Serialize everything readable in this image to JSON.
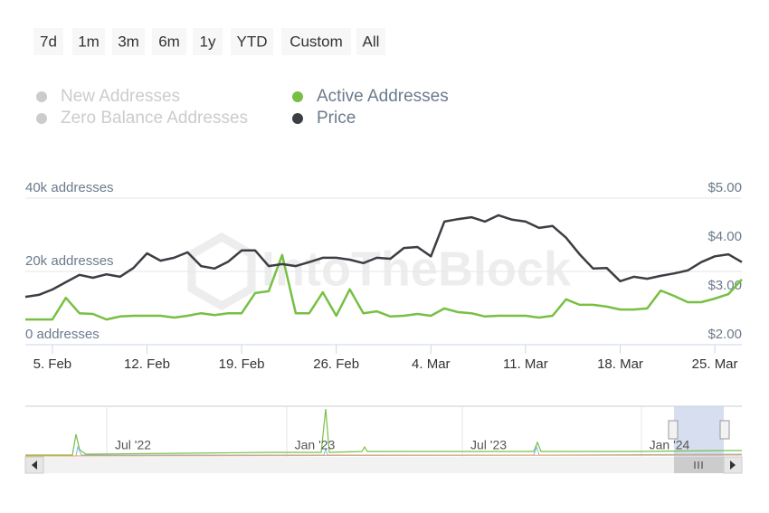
{
  "chart_data": {
    "type": "line",
    "range_buttons": [
      "7d",
      "1m",
      "3m",
      "6m",
      "1y",
      "YTD",
      "Custom",
      "All"
    ],
    "hidden_series": [
      "New Addresses",
      "Zero Balance Addresses"
    ],
    "hidden_color": "#cccccc",
    "watermark": "IntoTheBlock",
    "categories": [
      null,
      null,
      "5. Feb",
      null,
      null,
      null,
      null,
      null,
      null,
      "12. Feb",
      null,
      null,
      null,
      null,
      null,
      null,
      "19. Feb",
      null,
      null,
      null,
      null,
      null,
      null,
      "26. Feb",
      null,
      null,
      null,
      null,
      null,
      null,
      "4. Mar",
      null,
      null,
      null,
      null,
      null,
      null,
      "11. Mar",
      null,
      null,
      null,
      null,
      null,
      null,
      "18. Mar",
      null,
      null,
      null,
      null,
      null,
      null,
      "25. Mar",
      null,
      null
    ],
    "series": [
      {
        "name": "Active Addresses",
        "color": "#77c043",
        "axis": "y",
        "values": [
          6900,
          6900,
          6900,
          12800,
          8600,
          8400,
          6900,
          7700,
          7900,
          7900,
          7900,
          7400,
          7900,
          8600,
          8100,
          8600,
          8600,
          14100,
          14600,
          24500,
          8600,
          8600,
          14300,
          7900,
          15100,
          8600,
          9100,
          7700,
          7900,
          8400,
          7900,
          9900,
          8900,
          8600,
          7700,
          7900,
          7900,
          7900,
          7400,
          7900,
          12400,
          10900,
          10900,
          10400,
          9600,
          9600,
          9900,
          14800,
          13300,
          11600,
          11600,
          12600,
          13800,
          17800
        ]
      },
      {
        "name": "Price",
        "color": "#3b3e43",
        "axis": "y2",
        "values": [
          2.98,
          3.02,
          3.13,
          3.28,
          3.43,
          3.37,
          3.44,
          3.39,
          3.57,
          3.87,
          3.72,
          3.78,
          3.89,
          3.61,
          3.56,
          3.7,
          3.93,
          3.93,
          3.61,
          3.65,
          3.61,
          3.69,
          3.78,
          3.78,
          3.74,
          3.67,
          3.78,
          3.76,
          3.98,
          4.0,
          3.81,
          4.52,
          4.57,
          4.61,
          4.52,
          4.65,
          4.56,
          4.52,
          4.39,
          4.43,
          4.19,
          3.85,
          3.56,
          3.57,
          3.3,
          3.39,
          3.35,
          3.41,
          3.46,
          3.52,
          3.69,
          3.81,
          3.85,
          3.69
        ]
      }
    ],
    "ylim": [
      0,
      40000
    ],
    "yticks": [
      {
        "value": 0,
        "label": "0 addresses"
      },
      {
        "value": 20000,
        "label": "20k addresses"
      },
      {
        "value": 40000,
        "label": "40k addresses"
      }
    ],
    "y2lim": [
      2,
      5
    ],
    "y2ticks": [
      {
        "value": 2,
        "label": "$2.00"
      },
      {
        "value": 3,
        "label": "$3.00"
      },
      {
        "value": 4,
        "label": "$4.00"
      },
      {
        "value": 5,
        "label": "$5.00"
      }
    ],
    "grid": true,
    "navigator_labels": [
      "Jul '22",
      "Jan '23",
      "Jul '23",
      "Jan '24"
    ]
  }
}
